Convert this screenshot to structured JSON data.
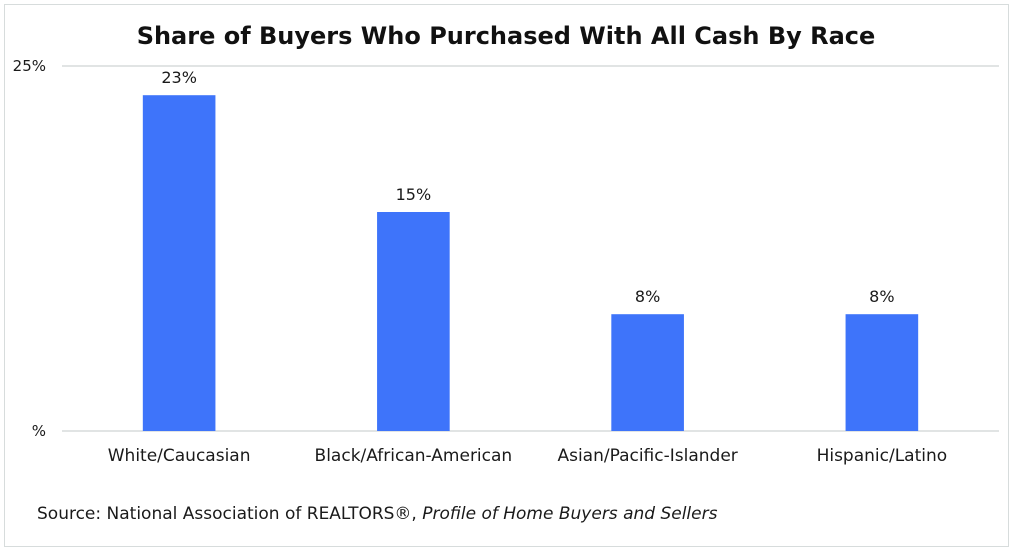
{
  "chart_data": {
    "type": "bar",
    "title": "Share of Buyers Who Purchased With All Cash By Race",
    "categories": [
      "White/Caucasian",
      "Black/African-American",
      "Asian/Pacific-Islander",
      "Hispanic/Latino"
    ],
    "values": [
      23,
      15,
      8,
      8
    ],
    "data_labels": [
      "23%",
      "15%",
      "8%",
      "8%"
    ],
    "y_tick_labels": [
      "%",
      "25%"
    ],
    "y_ticks": [
      0,
      25
    ],
    "ylim": [
      0,
      25
    ],
    "xlabel": "",
    "ylabel": "",
    "grid": true,
    "bar_color": "#3e74fa",
    "gridline_color": "#d7dcdc"
  },
  "source": {
    "prefix": "Source: National Association of REALTORS®, ",
    "publication": "Profile of Home Buyers and Sellers"
  }
}
